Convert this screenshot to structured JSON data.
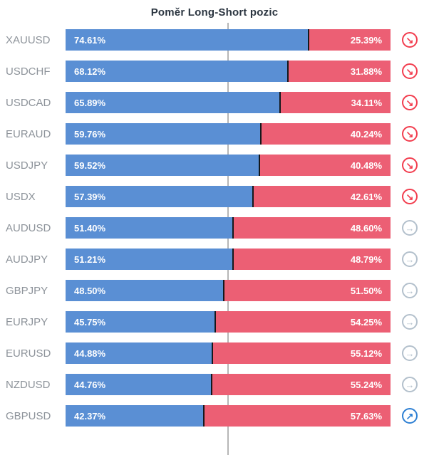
{
  "title": "Poměr Long-Short pozic",
  "colors": {
    "long": "#5a8fd4",
    "short": "#ec5f74",
    "segment_divider": "#14181c",
    "center_line": "#b6b6b6",
    "pair_label": "#8d939a",
    "signal_sell": "#f23d4e",
    "signal_neutral": "#b3c0cc",
    "signal_buy": "#2d7fd3"
  },
  "chart_data": {
    "type": "bar",
    "orientation": "horizontal",
    "stacked": true,
    "title": "Poměr Long-Short pozic",
    "xlim": [
      0,
      100
    ],
    "center_line": 50,
    "legend": "none",
    "categories": [
      "XAUUSD",
      "USDCHF",
      "USDCAD",
      "EURAUD",
      "USDJPY",
      "USDX",
      "AUDUSD",
      "AUDJPY",
      "GBPJPY",
      "EURJPY",
      "EURUSD",
      "NZDUSD",
      "GBPUSD"
    ],
    "series": [
      {
        "name": "Long",
        "color": "#5a8fd4",
        "values": [
          74.61,
          68.12,
          65.89,
          59.76,
          59.52,
          57.39,
          51.4,
          51.21,
          48.5,
          45.75,
          44.88,
          44.76,
          42.37
        ]
      },
      {
        "name": "Short",
        "color": "#ec5f74",
        "values": [
          25.39,
          31.88,
          34.11,
          40.24,
          40.48,
          42.61,
          48.6,
          48.79,
          51.5,
          54.25,
          55.12,
          55.24,
          57.63
        ]
      }
    ],
    "rows": [
      {
        "pair": "XAUUSD",
        "long": 74.61,
        "short": 25.39,
        "signal": "sell"
      },
      {
        "pair": "USDCHF",
        "long": 68.12,
        "short": 31.88,
        "signal": "sell"
      },
      {
        "pair": "USDCAD",
        "long": 65.89,
        "short": 34.11,
        "signal": "sell"
      },
      {
        "pair": "EURAUD",
        "long": 59.76,
        "short": 40.24,
        "signal": "sell"
      },
      {
        "pair": "USDJPY",
        "long": 59.52,
        "short": 40.48,
        "signal": "sell"
      },
      {
        "pair": "USDX",
        "long": 57.39,
        "short": 42.61,
        "signal": "sell"
      },
      {
        "pair": "AUDUSD",
        "long": 51.4,
        "short": 48.6,
        "signal": "neutral"
      },
      {
        "pair": "AUDJPY",
        "long": 51.21,
        "short": 48.79,
        "signal": "neutral"
      },
      {
        "pair": "GBPJPY",
        "long": 48.5,
        "short": 51.5,
        "signal": "neutral"
      },
      {
        "pair": "EURJPY",
        "long": 45.75,
        "short": 54.25,
        "signal": "neutral"
      },
      {
        "pair": "EURUSD",
        "long": 44.88,
        "short": 55.12,
        "signal": "neutral"
      },
      {
        "pair": "NZDUSD",
        "long": 44.76,
        "short": 55.24,
        "signal": "neutral"
      },
      {
        "pair": "GBPUSD",
        "long": 42.37,
        "short": 57.63,
        "signal": "buy"
      }
    ],
    "signal_glyphs": {
      "sell": "↘",
      "neutral": "→",
      "buy": "↗"
    }
  }
}
